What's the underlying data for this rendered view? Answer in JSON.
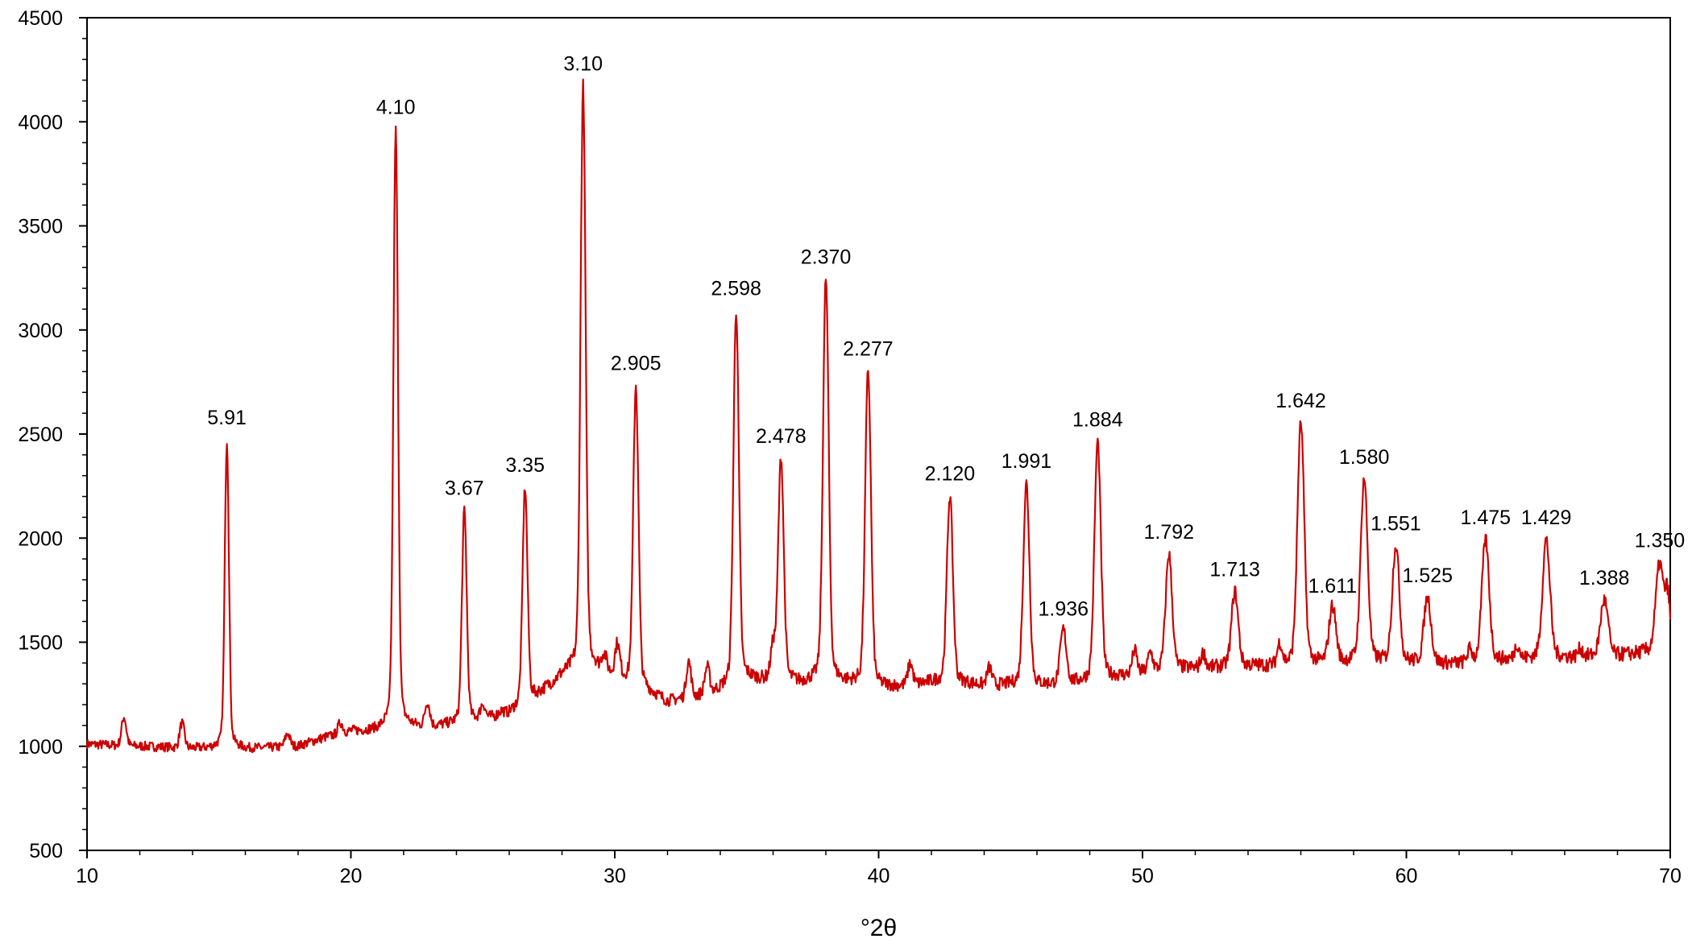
{
  "chart_data": {
    "type": "line",
    "title": "",
    "xlabel": "°2θ",
    "ylabel": "",
    "xlim": [
      10,
      70
    ],
    "ylim": [
      500,
      4500
    ],
    "x_ticks": [
      10,
      20,
      30,
      40,
      50,
      60,
      70
    ],
    "x_tick_labels": [
      "10",
      "20",
      "30",
      "40",
      "50",
      "60",
      "70"
    ],
    "y_ticks": [
      500,
      1000,
      1500,
      2000,
      2500,
      3000,
      3500,
      4000,
      4500
    ],
    "y_tick_labels": [
      "500",
      "1000",
      "1500",
      "2000",
      "2500",
      "3000",
      "3500",
      "4000",
      "4500"
    ],
    "x_minor_step": 2,
    "y_minor_step": 100,
    "grid": false,
    "legend": "none",
    "line_color": "#cc0000",
    "baseline": [
      [
        10,
        1010
      ],
      [
        14,
        990
      ],
      [
        15,
        985
      ],
      [
        16,
        985
      ],
      [
        18,
        1000
      ],
      [
        19,
        1040
      ],
      [
        20,
        1070
      ],
      [
        21,
        1070
      ],
      [
        22,
        1080
      ],
      [
        24,
        1100
      ],
      [
        26,
        1150
      ],
      [
        27,
        1230
      ],
      [
        28,
        1330
      ],
      [
        29,
        1370
      ],
      [
        30,
        1330
      ],
      [
        31,
        1270
      ],
      [
        32,
        1210
      ],
      [
        34,
        1260
      ],
      [
        35,
        1310
      ],
      [
        36,
        1300
      ],
      [
        37,
        1290
      ],
      [
        38,
        1300
      ],
      [
        40,
        1270
      ],
      [
        42,
        1300
      ],
      [
        44,
        1290
      ],
      [
        46,
        1280
      ],
      [
        48,
        1300
      ],
      [
        50,
        1350
      ],
      [
        52,
        1370
      ],
      [
        54,
        1380
      ],
      [
        56,
        1380
      ],
      [
        58,
        1390
      ],
      [
        60,
        1390
      ],
      [
        62,
        1390
      ],
      [
        64,
        1410
      ],
      [
        66,
        1420
      ],
      [
        68,
        1430
      ],
      [
        70,
        1460
      ]
    ],
    "peaks": [
      {
        "x": 15.3,
        "y": 2470,
        "label": "5.91"
      },
      {
        "x": 21.7,
        "y": 3960,
        "label": "4.10"
      },
      {
        "x": 24.3,
        "y": 2130,
        "label": "3.67"
      },
      {
        "x": 26.6,
        "y": 2240,
        "label": "3.35"
      },
      {
        "x": 28.8,
        "y": 4170,
        "label": "3.10"
      },
      {
        "x": 30.8,
        "y": 2730,
        "label": "2.905"
      },
      {
        "x": 34.6,
        "y": 3090,
        "label": "2.598"
      },
      {
        "x": 36.3,
        "y": 2380,
        "label": "2.478"
      },
      {
        "x": 38.0,
        "y": 3240,
        "label": "2.370"
      },
      {
        "x": 39.6,
        "y": 2800,
        "label": "2.277"
      },
      {
        "x": 42.7,
        "y": 2200,
        "label": "2.120"
      },
      {
        "x": 45.6,
        "y": 2260,
        "label": "1.991"
      },
      {
        "x": 47.0,
        "y": 1550,
        "label": "1.936"
      },
      {
        "x": 48.3,
        "y": 2460,
        "label": "1.884"
      },
      {
        "x": 51.0,
        "y": 1920,
        "label": "1.792"
      },
      {
        "x": 53.5,
        "y": 1740,
        "label": "1.713"
      },
      {
        "x": 56.0,
        "y": 2550,
        "label": "1.642"
      },
      {
        "x": 57.2,
        "y": 1660,
        "label": "1.611"
      },
      {
        "x": 58.4,
        "y": 2280,
        "label": "1.580"
      },
      {
        "x": 59.6,
        "y": 1960,
        "label": "1.551"
      },
      {
        "x": 60.8,
        "y": 1710,
        "label": "1.525"
      },
      {
        "x": 63.0,
        "y": 1990,
        "label": "1.475"
      },
      {
        "x": 65.3,
        "y": 1990,
        "label": "1.429"
      },
      {
        "x": 67.5,
        "y": 1700,
        "label": "1.388"
      },
      {
        "x": 69.6,
        "y": 1880,
        "label": "1.350"
      }
    ],
    "minor_bumps": [
      {
        "x": 11.4,
        "y": 1140
      },
      {
        "x": 13.6,
        "y": 1110
      },
      {
        "x": 17.6,
        "y": 1060
      },
      {
        "x": 19.6,
        "y": 1110
      },
      {
        "x": 22.9,
        "y": 1200
      },
      {
        "x": 25.0,
        "y": 1190
      },
      {
        "x": 25.7,
        "y": 1160
      },
      {
        "x": 29.6,
        "y": 1420
      },
      {
        "x": 30.1,
        "y": 1470
      },
      {
        "x": 32.8,
        "y": 1400
      },
      {
        "x": 33.5,
        "y": 1370
      },
      {
        "x": 36.0,
        "y": 1450
      },
      {
        "x": 41.2,
        "y": 1390
      },
      {
        "x": 44.2,
        "y": 1370
      },
      {
        "x": 49.7,
        "y": 1450
      },
      {
        "x": 50.3,
        "y": 1440
      },
      {
        "x": 52.3,
        "y": 1440
      },
      {
        "x": 55.2,
        "y": 1480
      },
      {
        "x": 62.4,
        "y": 1450
      },
      {
        "x": 64.2,
        "y": 1480
      },
      {
        "x": 66.6,
        "y": 1460
      },
      {
        "x": 69.9,
        "y": 1700
      }
    ]
  }
}
